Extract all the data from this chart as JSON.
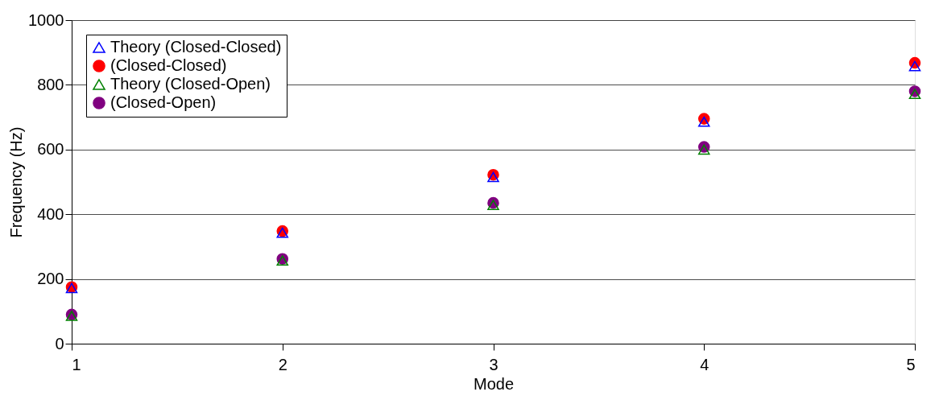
{
  "chart_data": {
    "type": "scatter",
    "xlabel": "Mode",
    "ylabel": "Frequency (Hz)",
    "x": [
      1,
      2,
      3,
      4,
      5
    ],
    "series": [
      {
        "name": "Theory (Closed-Closed)",
        "color": "#0000ff",
        "marker": "triangle",
        "values": [
          172,
          343,
          515,
          686,
          858
        ]
      },
      {
        "name": "(Closed-Closed)",
        "color": "#ff0000",
        "marker": "circle",
        "values": [
          175,
          348,
          522,
          695,
          868
        ]
      },
      {
        "name": "Theory (Closed-Open)",
        "color": "#008000",
        "marker": "triangle",
        "values": [
          86,
          257,
          429,
          600,
          772
        ]
      },
      {
        "name": "(Closed-Open)",
        "color": "#800080",
        "marker": "circle",
        "values": [
          90,
          262,
          435,
          608,
          780
        ]
      }
    ],
    "xlim": [
      1,
      5
    ],
    "xticks": [
      1,
      2,
      3,
      4,
      5
    ],
    "ylim": [
      0,
      1000
    ],
    "yticks": [
      0,
      200,
      400,
      600,
      800,
      1000
    ],
    "grid": "y",
    "legend": "top left"
  }
}
